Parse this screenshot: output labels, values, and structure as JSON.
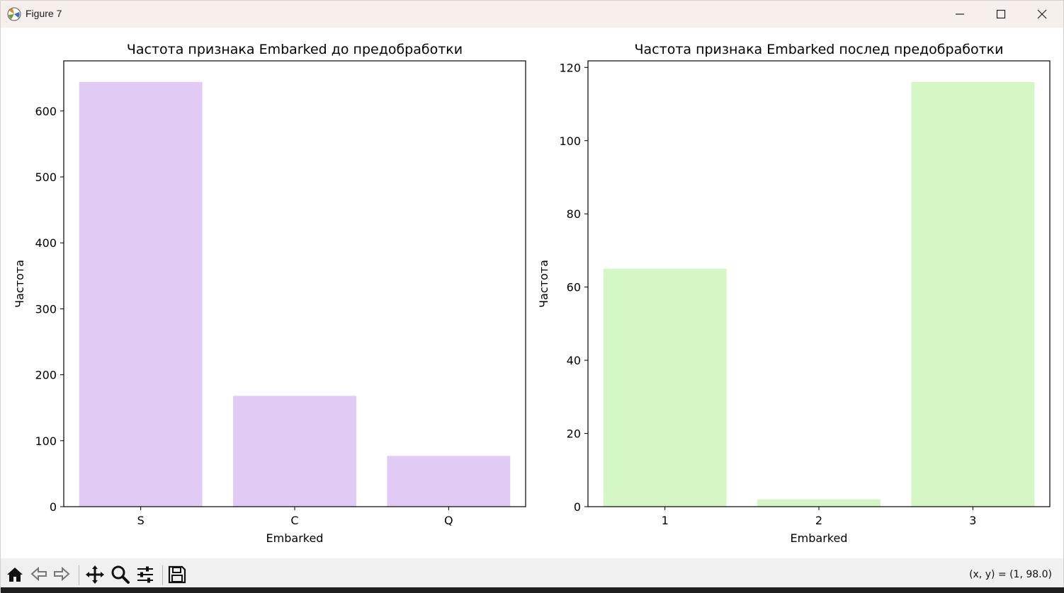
{
  "window": {
    "title": "Figure 7",
    "controls": {
      "minimize": "minimize",
      "maximize": "maximize",
      "close": "close"
    }
  },
  "toolbar": {
    "buttons": [
      "home-icon",
      "back-icon",
      "forward-icon",
      "pan-icon",
      "zoom-icon",
      "configure-subplots-icon",
      "save-icon"
    ],
    "coords": "(x, y) = (1, 98.0)"
  },
  "colors": {
    "left_bars": "#e1cbf4",
    "right_bars": "#d4f6c5",
    "titlebar": "#f7efec",
    "toolbar": "#f0f0f0"
  },
  "chart_data": [
    {
      "type": "bar",
      "title": "Частота признака Embarked до предобработки",
      "xlabel": "Embarked",
      "ylabel": "Частота",
      "categories": [
        "S",
        "C",
        "Q"
      ],
      "values": [
        644,
        168,
        77
      ],
      "ylim": [
        0,
        676
      ],
      "yticks": [
        0,
        100,
        200,
        300,
        400,
        500,
        600
      ],
      "color": "#e1cbf4"
    },
    {
      "type": "bar",
      "title": "Частота признака Embarked послед предобработки",
      "xlabel": "Embarked",
      "ylabel": "Частота",
      "categories": [
        "1",
        "2",
        "3"
      ],
      "values": [
        65,
        2,
        116
      ],
      "ylim": [
        0,
        121.8
      ],
      "yticks": [
        0,
        20,
        40,
        60,
        80,
        100,
        120
      ],
      "color": "#d4f6c5"
    }
  ]
}
